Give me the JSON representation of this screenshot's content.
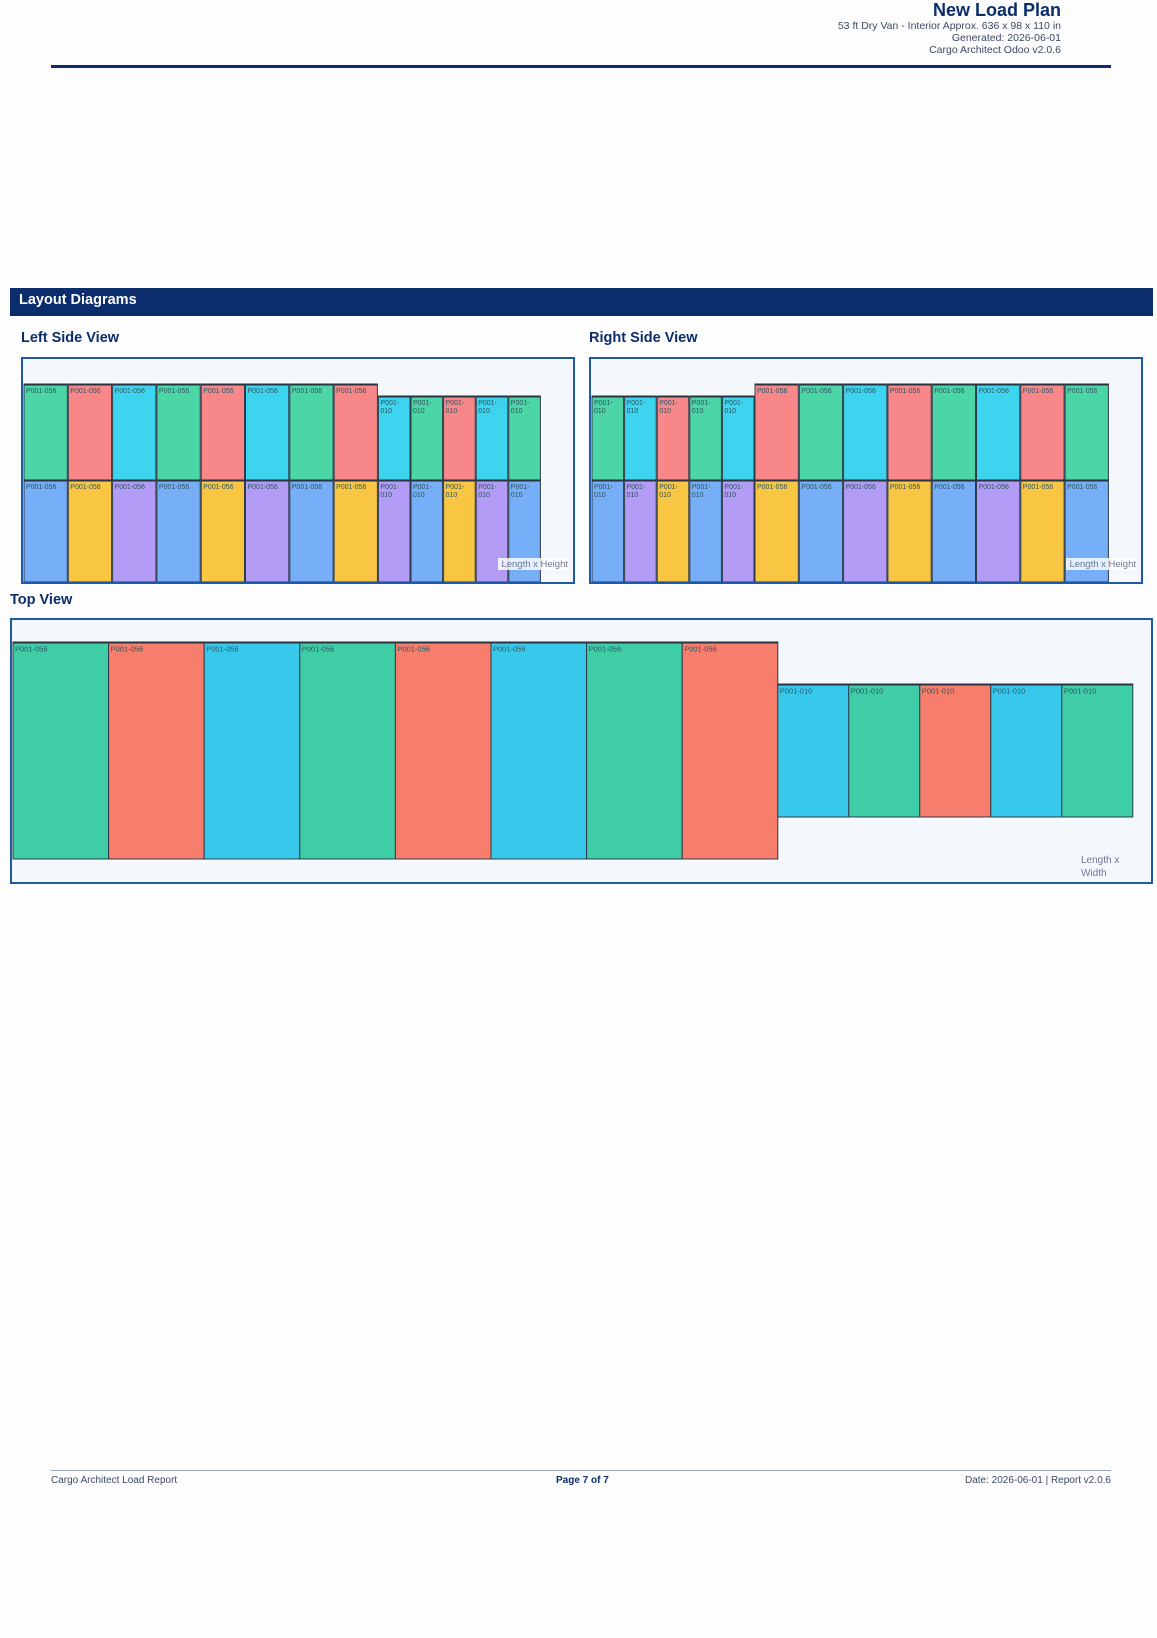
{
  "header": {
    "title": "New Load Plan",
    "subtitle": "53 ft Dry Van - Interior Approx. 636 x 98 x 110 in",
    "generated": "Generated: 2026-06-01",
    "app": "Cargo Architect Odoo v2.0.6"
  },
  "section": {
    "title": "Layout Diagrams"
  },
  "colors": {
    "green": "#4cd6a6",
    "red": "#f8878a",
    "cyan": "#3dd4ef",
    "blue": "#76aef7",
    "yellow": "#f9c644",
    "purple": "#b29cf6",
    "top_green": "#3ecda7",
    "top_red": "#f77d6c",
    "top_cyan": "#38c8eb"
  },
  "left_view": {
    "title": "Left Side View",
    "axis_label": "Length x Height",
    "top_row": [
      {
        "id": "P001-056",
        "color": "green"
      },
      {
        "id": "P001-056",
        "color": "red"
      },
      {
        "id": "P001-056",
        "color": "cyan"
      },
      {
        "id": "P001-056",
        "color": "green"
      },
      {
        "id": "P001-056",
        "color": "red"
      },
      {
        "id": "P001-056",
        "color": "cyan"
      },
      {
        "id": "P001-056",
        "color": "green"
      },
      {
        "id": "P001-056",
        "color": "red"
      },
      {
        "id": "P001-010",
        "color": "cyan"
      },
      {
        "id": "P001-010",
        "color": "green"
      },
      {
        "id": "P001-010",
        "color": "red"
      },
      {
        "id": "P001-010",
        "color": "cyan"
      },
      {
        "id": "P001-010",
        "color": "green"
      }
    ],
    "bottom_row": [
      {
        "id": "P001-056",
        "color": "blue"
      },
      {
        "id": "P001-056",
        "color": "yellow"
      },
      {
        "id": "P001-056",
        "color": "purple"
      },
      {
        "id": "P001-056",
        "color": "blue"
      },
      {
        "id": "P001-056",
        "color": "yellow"
      },
      {
        "id": "P001-056",
        "color": "purple"
      },
      {
        "id": "P001-056",
        "color": "blue"
      },
      {
        "id": "P001-056",
        "color": "yellow"
      },
      {
        "id": "P001-010",
        "color": "purple"
      },
      {
        "id": "P001-010",
        "color": "blue"
      },
      {
        "id": "P001-010",
        "color": "yellow"
      },
      {
        "id": "P001-010",
        "color": "purple"
      },
      {
        "id": "P001-010",
        "color": "blue"
      }
    ]
  },
  "right_view": {
    "title": "Right Side View",
    "axis_label": "Length x Height",
    "top_row": [
      {
        "id": "P001-010",
        "color": "green"
      },
      {
        "id": "P001-010",
        "color": "cyan"
      },
      {
        "id": "P001-010",
        "color": "red"
      },
      {
        "id": "P001-010",
        "color": "green"
      },
      {
        "id": "P001-010",
        "color": "cyan"
      },
      {
        "id": "P001-056",
        "color": "red"
      },
      {
        "id": "P001-056",
        "color": "green"
      },
      {
        "id": "P001-056",
        "color": "cyan"
      },
      {
        "id": "P001-056",
        "color": "red"
      },
      {
        "id": "P001-056",
        "color": "green"
      },
      {
        "id": "P001-056",
        "color": "cyan"
      },
      {
        "id": "P001-056",
        "color": "red"
      },
      {
        "id": "P001-056",
        "color": "green"
      }
    ],
    "bottom_row": [
      {
        "id": "P001-010",
        "color": "blue"
      },
      {
        "id": "P001-010",
        "color": "purple"
      },
      {
        "id": "P001-010",
        "color": "yellow"
      },
      {
        "id": "P001-010",
        "color": "blue"
      },
      {
        "id": "P001-010",
        "color": "purple"
      },
      {
        "id": "P001-056",
        "color": "yellow"
      },
      {
        "id": "P001-056",
        "color": "blue"
      },
      {
        "id": "P001-056",
        "color": "purple"
      },
      {
        "id": "P001-056",
        "color": "yellow"
      },
      {
        "id": "P001-056",
        "color": "blue"
      },
      {
        "id": "P001-056",
        "color": "purple"
      },
      {
        "id": "P001-056",
        "color": "yellow"
      },
      {
        "id": "P001-056",
        "color": "blue"
      }
    ]
  },
  "top_view": {
    "title": "Top View",
    "axis_label_line1": "Length x",
    "axis_label_line2": "Width",
    "row": [
      {
        "id": "P001-056",
        "color": "top_green"
      },
      {
        "id": "P001-056",
        "color": "top_red"
      },
      {
        "id": "P001-056",
        "color": "top_cyan"
      },
      {
        "id": "P001-056",
        "color": "top_green"
      },
      {
        "id": "P001-056",
        "color": "top_red"
      },
      {
        "id": "P001-056",
        "color": "top_cyan"
      },
      {
        "id": "P001-056",
        "color": "top_green"
      },
      {
        "id": "P001-056",
        "color": "top_red"
      },
      {
        "id": "P001-010",
        "color": "top_cyan"
      },
      {
        "id": "P001-010",
        "color": "top_green"
      },
      {
        "id": "P001-010",
        "color": "top_red"
      },
      {
        "id": "P001-010",
        "color": "top_cyan"
      },
      {
        "id": "P001-010",
        "color": "top_green"
      }
    ]
  },
  "footer": {
    "left": "Cargo Architect Load Report",
    "center": "Page 7 of 7",
    "right": "Date: 2026-06-01 | Report v2.0.6"
  }
}
